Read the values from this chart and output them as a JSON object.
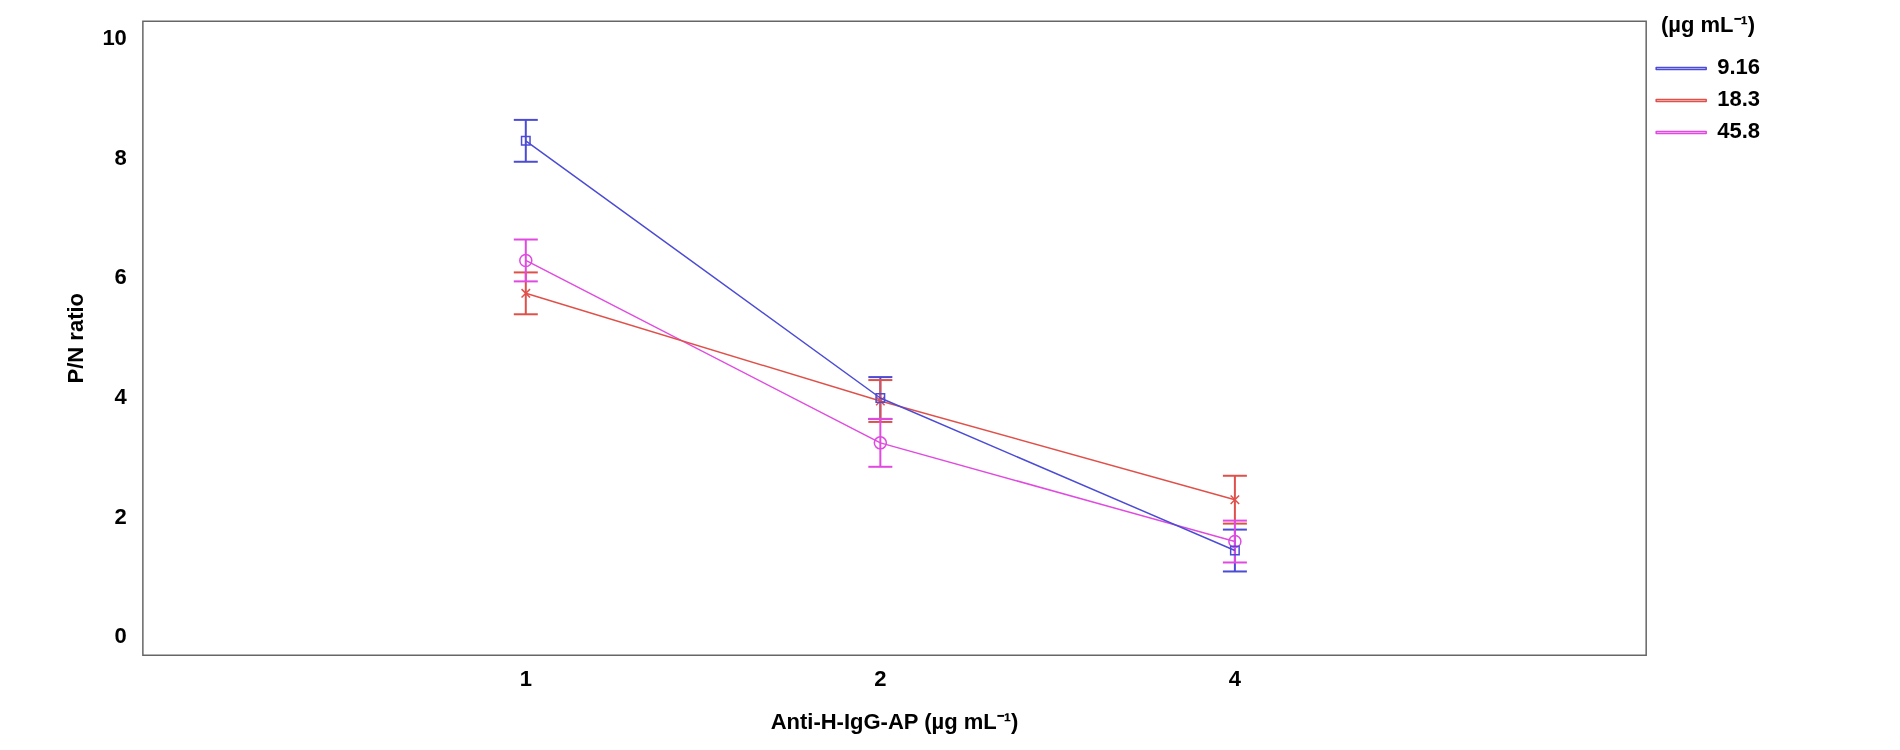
{
  "chart_data": {
    "type": "line",
    "xlabel": "Anti-H-IgG-AP (µg mL⁻¹)",
    "ylabel": "P/N ratio",
    "legend_title": "(µg mL⁻¹)",
    "categories": [
      "1",
      "2",
      "4"
    ],
    "ylim": [
      -0.3,
      10.3
    ],
    "yticks": [
      0,
      2,
      4,
      6,
      8,
      10
    ],
    "grid": false,
    "legend": "top right",
    "line_style": "solid",
    "series": [
      {
        "name": "9.16",
        "color": "#4b4bd6",
        "marker": "square",
        "values": [
          8.3,
          4.0,
          1.45
        ],
        "errors": [
          0.35,
          0.35,
          0.35
        ]
      },
      {
        "name": "18.3",
        "color": "#e0504a",
        "marker": "cross",
        "values": [
          5.75,
          3.95,
          2.3
        ],
        "errors": [
          0.35,
          0.35,
          0.4
        ]
      },
      {
        "name": "45.8",
        "color": "#e04ae0",
        "marker": "circle",
        "values": [
          6.3,
          3.25,
          1.6
        ],
        "errors": [
          0.35,
          0.4,
          0.35
        ]
      }
    ]
  }
}
